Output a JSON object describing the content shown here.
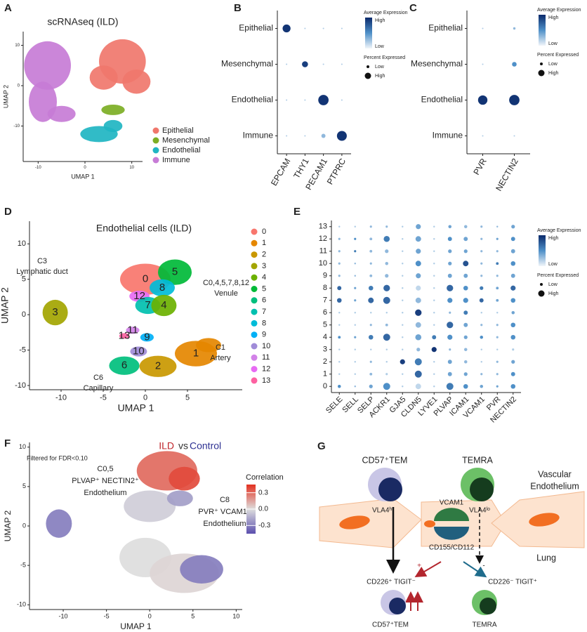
{
  "panel_labels": [
    "A",
    "B",
    "C",
    "D",
    "E",
    "F",
    "G"
  ],
  "chart_data": [
    {
      "type": "umap",
      "title": "scRNAseq (ILD)",
      "x_label": "UMAP 1",
      "y_label": "UMAP 2",
      "xlim": [
        -13.2,
        12.3
      ],
      "ylim": [
        -18.8,
        13.4
      ],
      "xticks": [
        -10,
        0,
        10
      ],
      "yticks": [
        -10,
        0,
        10
      ],
      "series": [
        {
          "name": "Epithelial",
          "color": "#f0776c"
        },
        {
          "name": "Mesenchymal",
          "color": "#7cae24"
        },
        {
          "name": "Endothelial",
          "color": "#1fb5c2"
        },
        {
          "name": "Immune",
          "color": "#c77cd6"
        }
      ]
    },
    {
      "type": "dotplot",
      "categories": [
        "EPCAM",
        "THY1",
        "PECAM1",
        "PTPRC"
      ],
      "rows": [
        "Epithelial",
        "Mesenchymal",
        "Endothelial",
        "Immune"
      ],
      "size": [
        [
          70,
          2,
          2,
          2
        ],
        [
          2,
          50,
          2,
          2
        ],
        [
          2,
          2,
          95,
          2
        ],
        [
          2,
          2,
          30,
          90
        ]
      ],
      "expression": [
        [
          0.95,
          0.2,
          0.2,
          0.2
        ],
        [
          0.2,
          0.9,
          0.2,
          0.2
        ],
        [
          0.2,
          0.2,
          0.95,
          0.2
        ],
        [
          0.2,
          0.2,
          0.3,
          0.95
        ]
      ],
      "colors": [
        "#f1f5fa",
        "#4f90c8",
        "#0b2a6b"
      ],
      "legend_color_title": "Average Expression",
      "color_labels": [
        "High",
        "Low"
      ],
      "legend_size_title": "Percent Expressed",
      "size_labels": [
        "Low",
        "High"
      ]
    },
    {
      "type": "dotplot",
      "categories": [
        "PVR",
        "NECTIN2"
      ],
      "rows": [
        "Epithelial",
        "Mesenchymal",
        "Endothelial",
        "Immune"
      ],
      "size": [
        [
          2,
          12
        ],
        [
          2,
          35
        ],
        [
          85,
          95
        ],
        [
          2,
          2
        ]
      ],
      "expression": [
        [
          0.2,
          0.3
        ],
        [
          0.2,
          0.5
        ],
        [
          0.95,
          0.95
        ],
        [
          0.2,
          0.2
        ]
      ],
      "colors": [
        "#f1f5fa",
        "#4f90c8",
        "#0b2a6b"
      ],
      "legend_color_title": "Average Expression",
      "color_labels": [
        "High",
        "Low"
      ],
      "legend_size_title": "Percent Expressed",
      "size_labels": [
        "Low",
        "High"
      ]
    },
    {
      "type": "umap",
      "title": "Endothelial cells (ILD)",
      "x_label": "UMAP 1",
      "y_label": "UMAP 2",
      "xlim": [
        -13.75,
        11.5
      ],
      "ylim": [
        -10.6,
        13.2
      ],
      "xticks": [
        -10,
        -5,
        0,
        5
      ],
      "yticks": [
        -10,
        -5,
        0,
        5,
        10
      ],
      "series": [
        {
          "name": "0",
          "color": "#f8766d"
        },
        {
          "name": "1",
          "color": "#e58700"
        },
        {
          "name": "2",
          "color": "#c99800"
        },
        {
          "name": "3",
          "color": "#a3a500"
        },
        {
          "name": "4",
          "color": "#6bb100"
        },
        {
          "name": "5",
          "color": "#00ba38"
        },
        {
          "name": "6",
          "color": "#00bf7d"
        },
        {
          "name": "7",
          "color": "#00c0af"
        },
        {
          "name": "8",
          "color": "#00bcd8"
        },
        {
          "name": "9",
          "color": "#00b0f6"
        },
        {
          "name": "10",
          "color": "#a08cd8"
        },
        {
          "name": "11",
          "color": "#d282e8"
        },
        {
          "name": "12",
          "color": "#e76bf3"
        },
        {
          "name": "13",
          "color": "#fd61a1"
        }
      ],
      "annotations": [
        "C3",
        "Lymphatic duct",
        "C0,4,5,7,8,12",
        "Venule",
        "C1",
        "Artery",
        "C6",
        "Capillary"
      ]
    },
    {
      "type": "dotplot",
      "categories": [
        "SELE",
        "SELL",
        "SELP",
        "ACKR1",
        "GJA5",
        "CLDN5",
        "LYVE1",
        "PLVAP",
        "ICAM1",
        "VCAM1",
        "PVR",
        "NECTIN2"
      ],
      "rows": [
        "13",
        "12",
        "11",
        "10",
        "9",
        "8",
        "7",
        "6",
        "5",
        "4",
        "3",
        "2",
        "1",
        "0"
      ],
      "size": [
        [
          5,
          5,
          10,
          10,
          5,
          40,
          5,
          20,
          20,
          10,
          5,
          25
        ],
        [
          10,
          10,
          15,
          50,
          5,
          45,
          5,
          30,
          30,
          10,
          10,
          30
        ],
        [
          10,
          10,
          15,
          25,
          5,
          40,
          5,
          25,
          25,
          10,
          10,
          30
        ],
        [
          10,
          5,
          10,
          20,
          5,
          45,
          5,
          25,
          45,
          10,
          15,
          35
        ],
        [
          10,
          5,
          15,
          25,
          5,
          40,
          5,
          30,
          30,
          10,
          10,
          30
        ],
        [
          30,
          10,
          35,
          55,
          5,
          40,
          5,
          55,
          35,
          25,
          15,
          40
        ],
        [
          35,
          10,
          45,
          60,
          5,
          45,
          5,
          40,
          40,
          30,
          15,
          35
        ],
        [
          5,
          5,
          5,
          5,
          5,
          55,
          5,
          10,
          30,
          5,
          5,
          20
        ],
        [
          5,
          5,
          10,
          15,
          5,
          45,
          5,
          55,
          30,
          10,
          10,
          35
        ],
        [
          15,
          10,
          35,
          60,
          5,
          50,
          30,
          40,
          25,
          20,
          10,
          35
        ],
        [
          5,
          5,
          5,
          5,
          5,
          25,
          40,
          10,
          20,
          5,
          5,
          10
        ],
        [
          5,
          5,
          10,
          5,
          40,
          60,
          5,
          30,
          20,
          5,
          10,
          25
        ],
        [
          5,
          5,
          15,
          10,
          5,
          60,
          5,
          30,
          25,
          10,
          10,
          30
        ],
        [
          20,
          5,
          25,
          60,
          5,
          45,
          5,
          60,
          35,
          20,
          10,
          35
        ]
      ],
      "expression": [
        [
          0.2,
          0.2,
          0.3,
          0.3,
          0.2,
          0.4,
          0.2,
          0.4,
          0.3,
          0.3,
          0.3,
          0.4
        ],
        [
          0.3,
          0.5,
          0.3,
          0.6,
          0.2,
          0.4,
          0.2,
          0.5,
          0.4,
          0.3,
          0.4,
          0.5
        ],
        [
          0.3,
          0.6,
          0.3,
          0.3,
          0.2,
          0.4,
          0.2,
          0.4,
          0.4,
          0.3,
          0.3,
          0.4
        ],
        [
          0.3,
          0.3,
          0.3,
          0.3,
          0.2,
          0.5,
          0.2,
          0.4,
          0.8,
          0.3,
          0.6,
          0.5
        ],
        [
          0.3,
          0.3,
          0.3,
          0.3,
          0.2,
          0.4,
          0.2,
          0.4,
          0.4,
          0.3,
          0.3,
          0.4
        ],
        [
          0.7,
          0.4,
          0.6,
          0.7,
          0.2,
          0.15,
          0.2,
          0.7,
          0.5,
          0.6,
          0.4,
          0.7
        ],
        [
          0.7,
          0.4,
          0.7,
          0.7,
          0.2,
          0.3,
          0.2,
          0.5,
          0.5,
          0.7,
          0.4,
          0.5
        ],
        [
          0.2,
          0.2,
          0.2,
          0.2,
          0.2,
          0.9,
          0.2,
          0.3,
          0.6,
          0.2,
          0.2,
          0.4
        ],
        [
          0.2,
          0.2,
          0.3,
          0.3,
          0.2,
          0.3,
          0.2,
          0.7,
          0.4,
          0.3,
          0.3,
          0.5
        ],
        [
          0.5,
          0.4,
          0.6,
          0.7,
          0.2,
          0.4,
          0.6,
          0.5,
          0.4,
          0.5,
          0.3,
          0.5
        ],
        [
          0.2,
          0.2,
          0.2,
          0.2,
          0.2,
          0.3,
          0.95,
          0.3,
          0.3,
          0.2,
          0.2,
          0.2
        ],
        [
          0.2,
          0.2,
          0.3,
          0.2,
          0.9,
          0.6,
          0.2,
          0.4,
          0.3,
          0.2,
          0.3,
          0.4
        ],
        [
          0.2,
          0.2,
          0.3,
          0.2,
          0.2,
          0.7,
          0.2,
          0.4,
          0.4,
          0.3,
          0.3,
          0.5
        ],
        [
          0.5,
          0.3,
          0.4,
          0.5,
          0.2,
          0.15,
          0.2,
          0.6,
          0.5,
          0.4,
          0.4,
          0.5
        ]
      ],
      "colors": [
        "#f1f5fa",
        "#4f90c8",
        "#0b2a6b"
      ],
      "legend_color_title": "Average Expression",
      "color_labels": [
        "High",
        "Low"
      ],
      "legend_size_title": "Percent Expressed",
      "size_labels": [
        "Low",
        "High"
      ]
    },
    {
      "type": "umap",
      "title": [
        "ILD",
        "vs",
        "Control"
      ],
      "title_colors": [
        "#c0272d",
        "#333333",
        "#2e3192"
      ],
      "subtitle": "Filtered for FDR<0.10",
      "x_label": "UMAP 1",
      "y_label": "UMAP 2",
      "xlim": [
        -13.9,
        10.7
      ],
      "ylim": [
        -10.6,
        10.6
      ],
      "xticks": [
        -10,
        -5,
        0,
        5,
        10
      ],
      "yticks": [
        -10,
        -5,
        0,
        5,
        10
      ],
      "annotations": [
        "C0,5",
        "PLVAP⁺ NECTIN2⁺",
        "Endothelium",
        "C8",
        "PVR⁺ VCAM1⁺",
        "Endothelium"
      ],
      "colorbar": {
        "title": "Correlation",
        "lim": [
          -0.45,
          0.45
        ],
        "colors": [
          "#5b4fae",
          "#dddddd",
          "#e3301f"
        ],
        "ticks": [
          0.3,
          {
            "value": 0,
            "label": "0.0"
          },
          -0.3
        ]
      }
    }
  ],
  "diagram": {
    "cell_1": "CD57⁺TEM",
    "cell_2": "TEMRA",
    "tissue": [
      "Vascular",
      "Endothelium"
    ],
    "ligand_1": "VLA4ʰⁱ",
    "ligand_2": "VLA4ˡᵒ",
    "receptor_1": "VCAM1",
    "receptor_2": "CD155/CD112",
    "site": "Lung",
    "sign_plus": "+",
    "sign_minus": "-",
    "phenotype_1": "CD226⁺ TIGIT⁻",
    "phenotype_2": "CD226⁻ TIGIT⁺",
    "result_1": "CD57⁺TEM",
    "result_2": "TEMRA"
  }
}
